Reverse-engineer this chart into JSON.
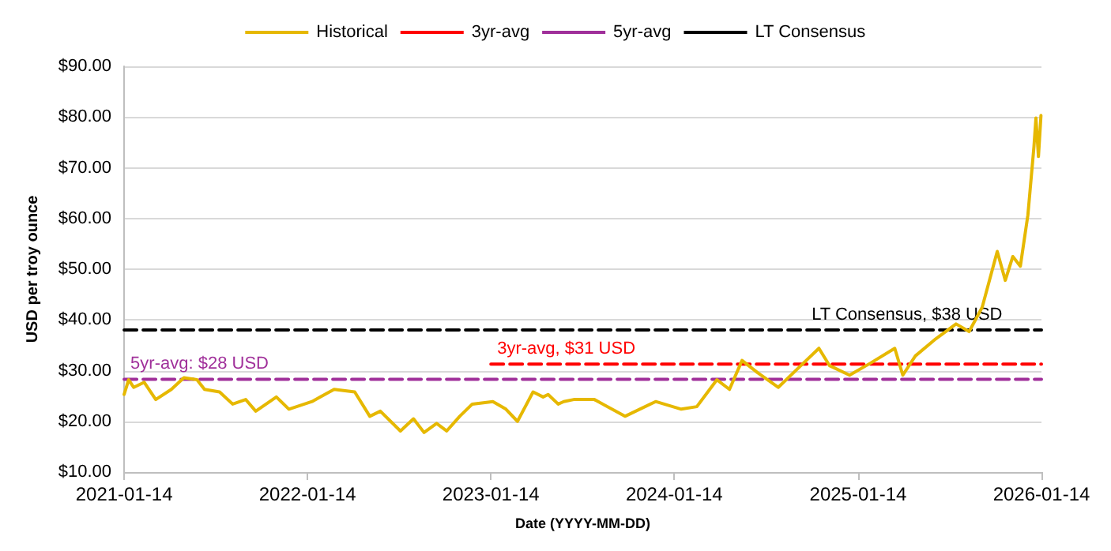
{
  "chart_data": {
    "type": "line",
    "xlabel": "Date (YYYY-MM-DD)",
    "ylabel": "USD per troy ounce",
    "legend": "top",
    "grid": "y",
    "line_style": "solid",
    "marker": "none",
    "xlim": [
      "2021-01-14",
      "2026-01-14"
    ],
    "xticks": [
      "2021-01-14",
      "2022-01-14",
      "2023-01-14",
      "2024-01-14",
      "2025-01-14",
      "2026-01-14"
    ],
    "ylim": [
      10,
      90
    ],
    "yticks": [
      {
        "value": 10,
        "label": "$10.00"
      },
      {
        "value": 20,
        "label": "$20.00"
      },
      {
        "value": 30,
        "label": "$30.00"
      },
      {
        "value": 40,
        "label": "$40.00"
      },
      {
        "value": 50,
        "label": "$50.00"
      },
      {
        "value": 60,
        "label": "$60.00"
      },
      {
        "value": 70,
        "label": "$70.00"
      },
      {
        "value": 80,
        "label": "$80.00"
      },
      {
        "value": 90,
        "label": "$90.00"
      }
    ],
    "series": [
      {
        "name": "Historical",
        "color": "#e6b800",
        "x": [
          "2021-01-14",
          "2021-01-23",
          "2021-02-02",
          "2021-02-23",
          "2021-03-18",
          "2021-04-18",
          "2021-05-13",
          "2021-06-08",
          "2021-06-23",
          "2021-07-23",
          "2021-08-18",
          "2021-09-13",
          "2021-10-03",
          "2021-11-13",
          "2021-12-08",
          "2022-01-23",
          "2022-02-08",
          "2022-03-08",
          "2022-04-18",
          "2022-05-18",
          "2022-06-08",
          "2022-07-18",
          "2022-08-13",
          "2022-09-03",
          "2022-09-28",
          "2022-10-18",
          "2022-11-13",
          "2022-12-08",
          "2023-01-18",
          "2023-02-13",
          "2023-03-08",
          "2023-04-08",
          "2023-04-28",
          "2023-05-08",
          "2023-05-28",
          "2023-06-08",
          "2023-06-28",
          "2023-08-08",
          "2023-10-08",
          "2023-12-08",
          "2024-01-28",
          "2024-02-28",
          "2024-04-08",
          "2024-05-03",
          "2024-05-28",
          "2024-06-28",
          "2024-08-08",
          "2024-09-18",
          "2024-10-28",
          "2024-11-18",
          "2024-12-28",
          "2025-02-08",
          "2025-03-28",
          "2025-04-13",
          "2025-05-08",
          "2025-06-18",
          "2025-07-28",
          "2025-08-23",
          "2025-09-18",
          "2025-10-18",
          "2025-11-03",
          "2025-11-18",
          "2025-12-03",
          "2025-12-18",
          "2025-12-30",
          "2026-01-03",
          "2026-01-08",
          "2026-01-13"
        ],
        "values": [
          25.3,
          28.2,
          26.7,
          27.7,
          24.3,
          26.3,
          28.6,
          28.2,
          26.3,
          25.8,
          23.4,
          24.3,
          22.0,
          24.8,
          22.4,
          23.9,
          24.8,
          26.3,
          25.8,
          21.0,
          22.0,
          18.1,
          20.5,
          17.8,
          19.6,
          18.1,
          21.0,
          23.4,
          23.9,
          22.4,
          20.0,
          25.8,
          24.8,
          25.3,
          23.4,
          23.9,
          24.3,
          24.3,
          21.0,
          23.9,
          22.4,
          22.9,
          28.2,
          26.3,
          32.0,
          29.6,
          26.7,
          30.6,
          34.4,
          31.0,
          29.1,
          31.5,
          34.4,
          29.1,
          32.9,
          36.3,
          39.2,
          37.7,
          42.5,
          53.5,
          47.8,
          52.5,
          50.6,
          60.7,
          74.1,
          79.8,
          72.2,
          80.3
        ]
      },
      {
        "name": "3yr-avg",
        "color": "#ff0000",
        "line_style": "dashed",
        "x": [
          "2023-01-14",
          "2026-01-14"
        ],
        "values": [
          31.3,
          31.3
        ]
      },
      {
        "name": "5yr-avg",
        "color": "#a0309a",
        "line_style": "dashed",
        "x": [
          "2021-01-14",
          "2026-01-14"
        ],
        "values": [
          28.3,
          28.3
        ]
      },
      {
        "name": "LT Consensus",
        "color": "#000000",
        "line_style": "dashed",
        "x": [
          "2021-01-14",
          "2026-01-14"
        ],
        "values": [
          38,
          38
        ]
      }
    ],
    "annotations": [
      {
        "text": "5yr-avg: $28 USD",
        "x": "2021-01-14",
        "y": 28.3
      },
      {
        "text": "3yr-avg, $31 USD",
        "x": "2023-01-14",
        "y": 31.3
      },
      {
        "text": "LT Consensus, $38 USD",
        "x": "2024-10-01",
        "y": 38
      }
    ]
  }
}
